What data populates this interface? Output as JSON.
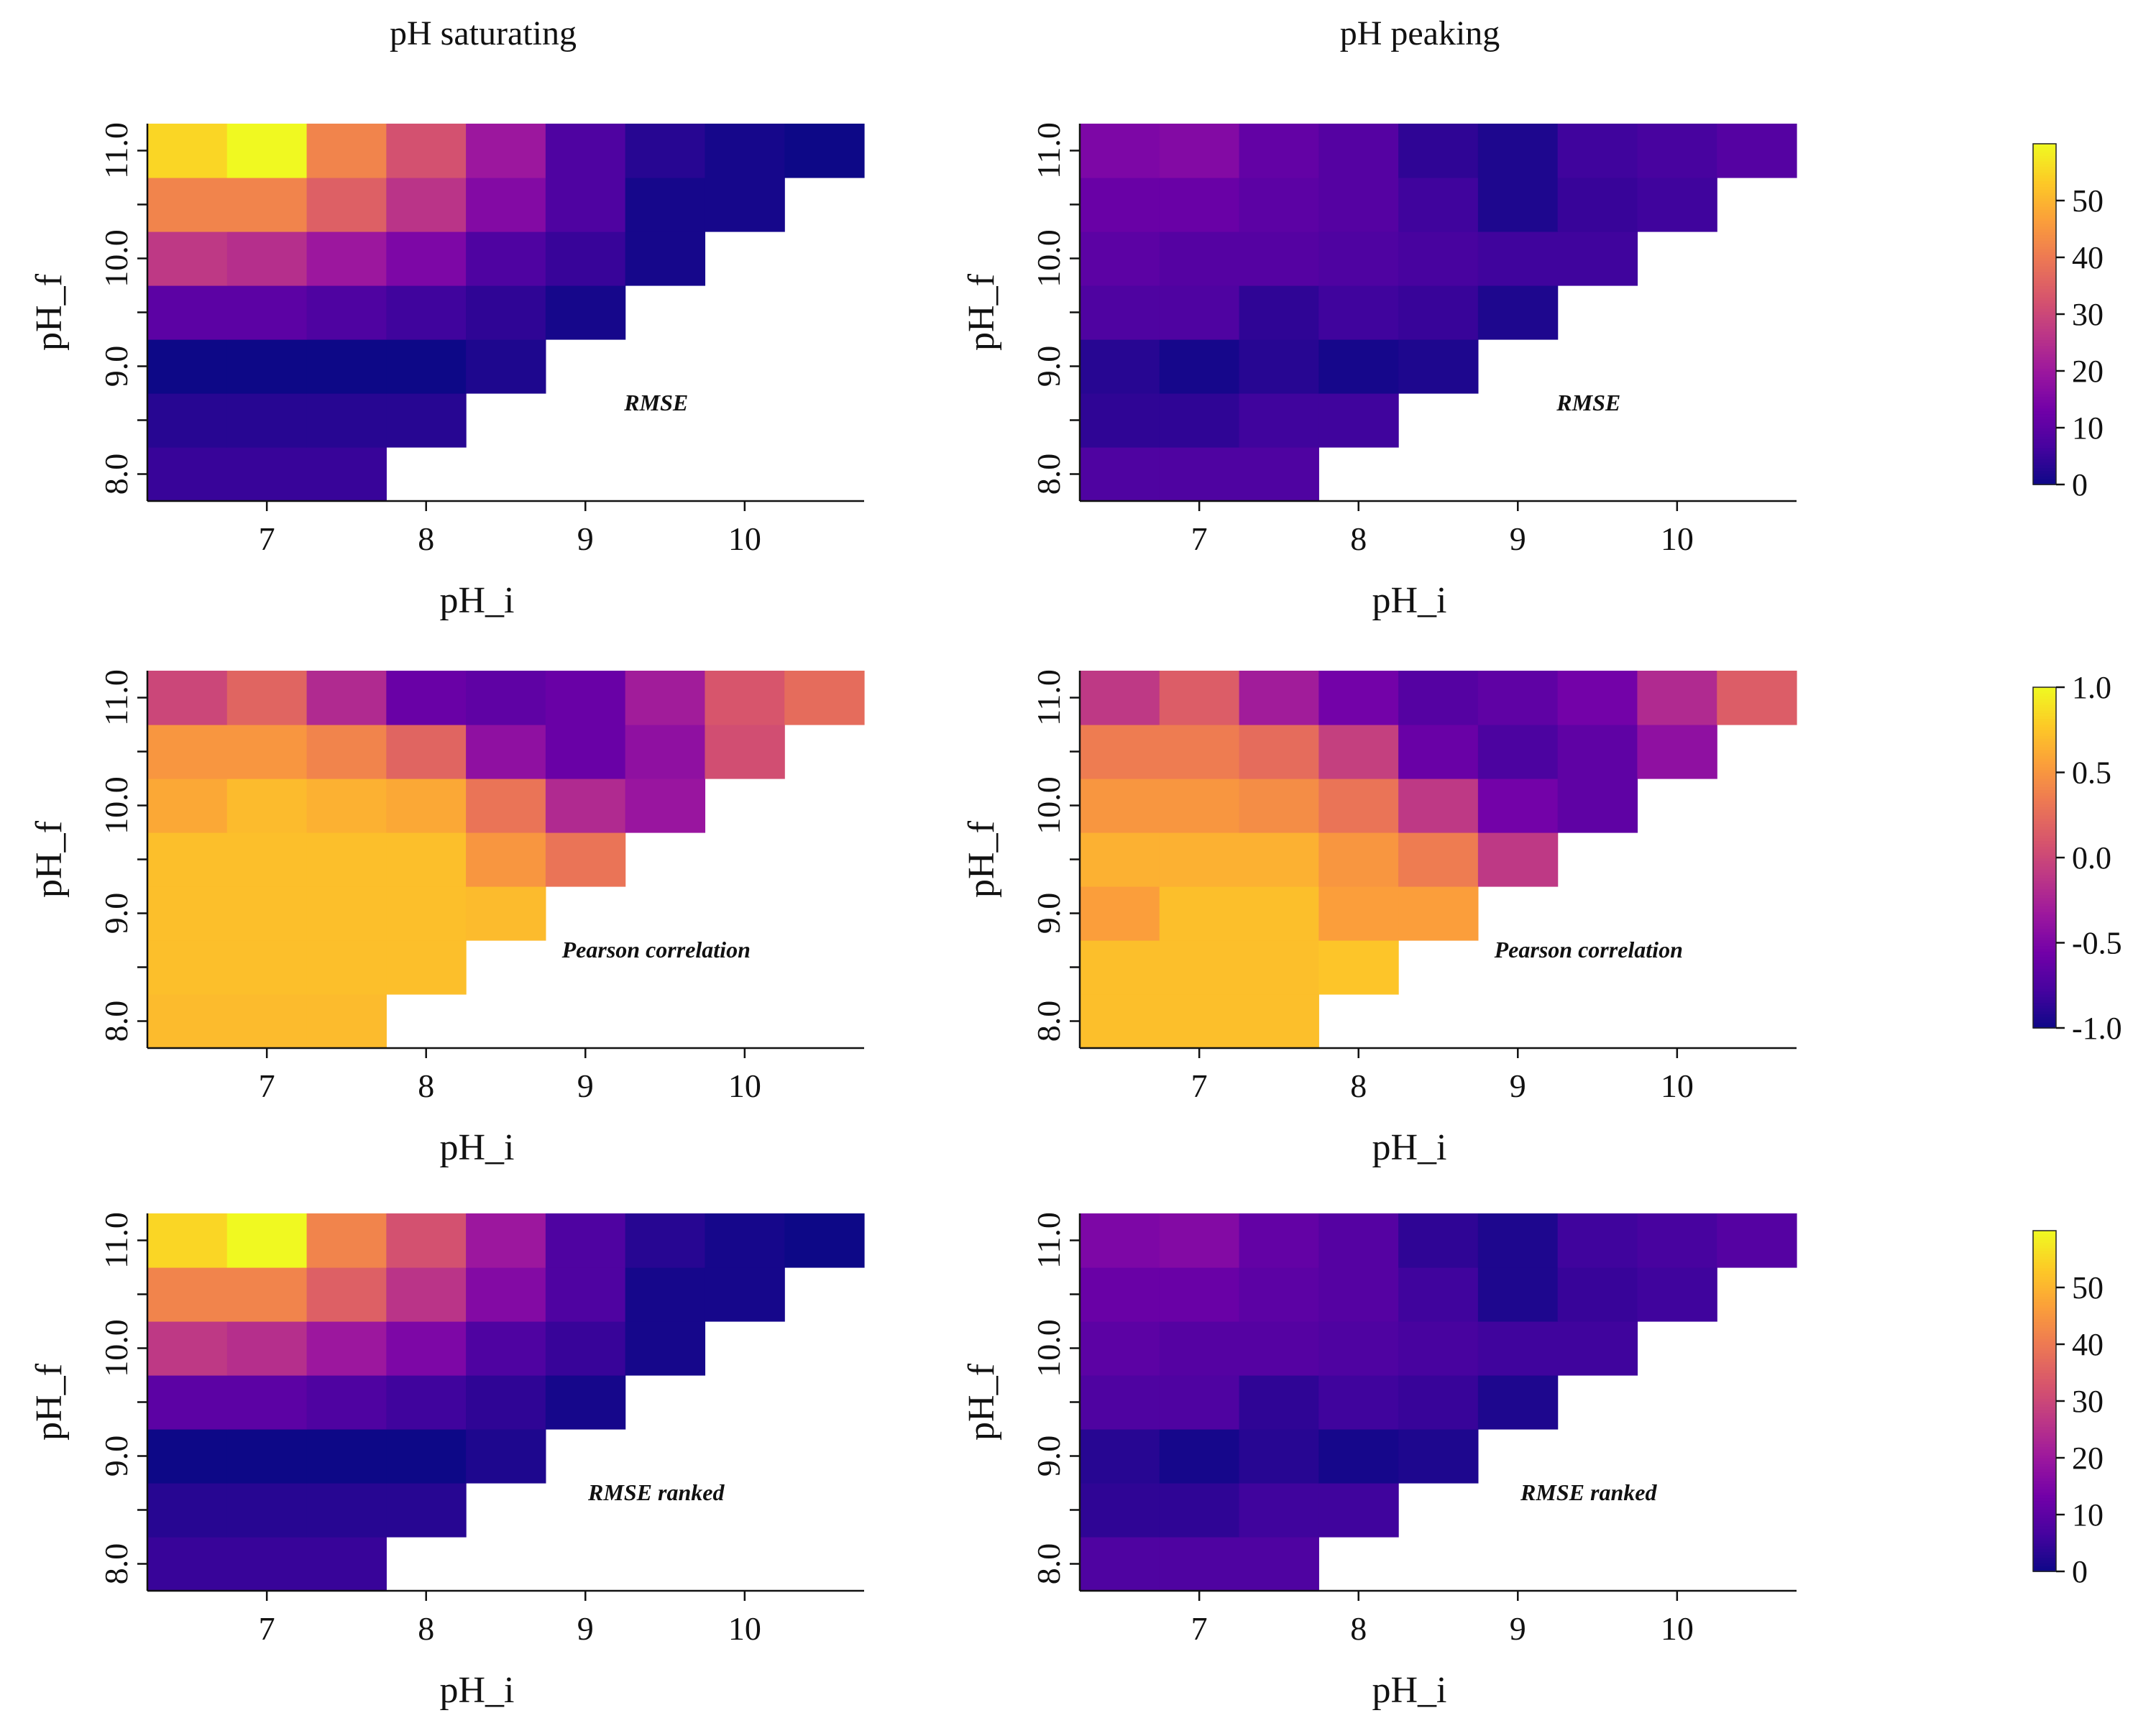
{
  "figure": {
    "col_titles": [
      "pH saturating",
      "pH peaking"
    ],
    "xlabel": "pH_i",
    "ylabel": "pH_f"
  },
  "chart_data": [
    {
      "type": "heatmap",
      "row": 0,
      "col": 0,
      "title": "pH saturating",
      "annotation": "RMSE",
      "xlabel": "pH_i",
      "ylabel": "pH_f",
      "x": [
        6.5,
        7.0,
        7.5,
        8.0,
        8.5,
        9.0,
        9.5,
        10.0,
        10.5
      ],
      "y": [
        8.0,
        8.5,
        9.0,
        9.5,
        10.0,
        10.5,
        11.0
      ],
      "xticks": [
        "7",
        "8",
        "9",
        "10"
      ],
      "yticks": [
        "8.0",
        "9.0",
        "10.0",
        "11.0"
      ],
      "xlim": [
        6.25,
        10.75
      ],
      "ylim": [
        7.75,
        11.25
      ],
      "values": [
        [
          5,
          5,
          5,
          null,
          null,
          null,
          null,
          null,
          null
        ],
        [
          3,
          3,
          3,
          3,
          null,
          null,
          null,
          null,
          null
        ],
        [
          0,
          0,
          0,
          0,
          2,
          null,
          null,
          null,
          null
        ],
        [
          10,
          10,
          8,
          6,
          4,
          1,
          null,
          null,
          null
        ],
        [
          27,
          25,
          20,
          15,
          8,
          5,
          1,
          null,
          null
        ],
        [
          42,
          42,
          35,
          26,
          16,
          8,
          1,
          1,
          null
        ],
        [
          55,
          60,
          42,
          32,
          20,
          8,
          3,
          1,
          0
        ]
      ]
    },
    {
      "type": "heatmap",
      "row": 0,
      "col": 1,
      "title": "pH peaking",
      "annotation": "RMSE",
      "xlabel": "pH_i",
      "ylabel": "pH_f",
      "x": [
        6.5,
        7.0,
        7.5,
        8.0,
        8.5,
        9.0,
        9.5,
        10.0,
        10.5
      ],
      "y": [
        8.0,
        8.5,
        9.0,
        9.5,
        10.0,
        10.5,
        11.0
      ],
      "xticks": [
        "7",
        "8",
        "9",
        "10"
      ],
      "yticks": [
        "8.0",
        "9.0",
        "10.0",
        "11.0"
      ],
      "xlim": [
        6.25,
        10.75
      ],
      "ylim": [
        7.75,
        11.25
      ],
      "values": [
        [
          8,
          8,
          8,
          null,
          null,
          null,
          null,
          null,
          null
        ],
        [
          4,
          4,
          6,
          6,
          null,
          null,
          null,
          null,
          null
        ],
        [
          3,
          1,
          3,
          1,
          2,
          null,
          null,
          null,
          null
        ],
        [
          8,
          8,
          4,
          6,
          5,
          2,
          null,
          null,
          null
        ],
        [
          10,
          9,
          9,
          8,
          7,
          6,
          6,
          null,
          null
        ],
        [
          12,
          12,
          10,
          9,
          6,
          2,
          5,
          6,
          null
        ],
        [
          15,
          16,
          11,
          9,
          4,
          2,
          6,
          7,
          9
        ]
      ]
    },
    {
      "type": "heatmap",
      "row": 1,
      "col": 0,
      "annotation": "Pearson correlation",
      "xlabel": "pH_i",
      "ylabel": "pH_f",
      "x": [
        6.5,
        7.0,
        7.5,
        8.0,
        8.5,
        9.0,
        9.5,
        10.0,
        10.5
      ],
      "y": [
        8.0,
        8.5,
        9.0,
        9.5,
        10.0,
        10.5,
        11.0
      ],
      "xticks": [
        "7",
        "8",
        "9",
        "10"
      ],
      "yticks": [
        "8.0",
        "9.0",
        "10.0",
        "11.0"
      ],
      "xlim": [
        6.25,
        10.75
      ],
      "ylim": [
        7.75,
        11.25
      ],
      "values": [
        [
          0.7,
          0.7,
          0.7,
          null,
          null,
          null,
          null,
          null,
          null
        ],
        [
          0.72,
          0.72,
          0.72,
          0.72,
          null,
          null,
          null,
          null,
          null
        ],
        [
          0.72,
          0.72,
          0.72,
          0.72,
          0.7,
          null,
          null,
          null,
          null
        ],
        [
          0.72,
          0.72,
          0.72,
          0.72,
          0.5,
          0.3,
          null,
          null,
          null
        ],
        [
          0.6,
          0.7,
          0.65,
          0.6,
          0.3,
          -0.2,
          -0.35,
          null,
          null
        ],
        [
          0.5,
          0.5,
          0.4,
          0.2,
          -0.4,
          -0.6,
          -0.4,
          0.05,
          null
        ],
        [
          0.0,
          0.2,
          -0.2,
          -0.6,
          -0.65,
          -0.6,
          -0.3,
          0.1,
          0.25
        ]
      ]
    },
    {
      "type": "heatmap",
      "row": 1,
      "col": 1,
      "annotation": "Pearson correlation",
      "xlabel": "pH_i",
      "ylabel": "pH_f",
      "x": [
        6.5,
        7.0,
        7.5,
        8.0,
        8.5,
        9.0,
        9.5,
        10.0,
        10.5
      ],
      "y": [
        8.0,
        8.5,
        9.0,
        9.5,
        10.0,
        10.5,
        11.0
      ],
      "xticks": [
        "7",
        "8",
        "9",
        "10"
      ],
      "yticks": [
        "8.0",
        "9.0",
        "10.0",
        "11.0"
      ],
      "xlim": [
        6.25,
        10.75
      ],
      "ylim": [
        7.75,
        11.25
      ],
      "values": [
        [
          0.72,
          0.72,
          0.72,
          null,
          null,
          null,
          null,
          null,
          null
        ],
        [
          0.72,
          0.72,
          0.72,
          0.75,
          null,
          null,
          null,
          null,
          null
        ],
        [
          0.55,
          0.72,
          0.72,
          0.55,
          0.55,
          null,
          null,
          null,
          null
        ],
        [
          0.65,
          0.65,
          0.65,
          0.5,
          0.35,
          -0.1,
          null,
          null,
          null
        ],
        [
          0.5,
          0.5,
          0.45,
          0.3,
          -0.1,
          -0.55,
          -0.65,
          null,
          null
        ],
        [
          0.35,
          0.35,
          0.25,
          -0.05,
          -0.6,
          -0.75,
          -0.65,
          -0.4,
          null
        ],
        [
          -0.1,
          0.15,
          -0.3,
          -0.55,
          -0.7,
          -0.65,
          -0.55,
          -0.2,
          0.15
        ]
      ]
    },
    {
      "type": "heatmap",
      "row": 2,
      "col": 0,
      "annotation": "RMSE ranked",
      "xlabel": "pH_i",
      "ylabel": "pH_f",
      "x": [
        6.5,
        7.0,
        7.5,
        8.0,
        8.5,
        9.0,
        9.5,
        10.0,
        10.5
      ],
      "y": [
        8.0,
        8.5,
        9.0,
        9.5,
        10.0,
        10.5,
        11.0
      ],
      "xticks": [
        "7",
        "8",
        "9",
        "10"
      ],
      "yticks": [
        "8.0",
        "9.0",
        "10.0",
        "11.0"
      ],
      "xlim": [
        6.25,
        10.75
      ],
      "ylim": [
        7.75,
        11.25
      ],
      "values": [
        [
          5,
          5,
          5,
          null,
          null,
          null,
          null,
          null,
          null
        ],
        [
          3,
          3,
          3,
          3,
          null,
          null,
          null,
          null,
          null
        ],
        [
          0,
          0,
          0,
          0,
          2,
          null,
          null,
          null,
          null
        ],
        [
          10,
          10,
          8,
          6,
          4,
          1,
          null,
          null,
          null
        ],
        [
          27,
          25,
          20,
          15,
          8,
          5,
          1,
          null,
          null
        ],
        [
          42,
          42,
          35,
          26,
          16,
          8,
          1,
          1,
          null
        ],
        [
          55,
          60,
          42,
          32,
          20,
          8,
          3,
          1,
          0
        ]
      ]
    },
    {
      "type": "heatmap",
      "row": 2,
      "col": 1,
      "annotation": "RMSE ranked",
      "xlabel": "pH_i",
      "ylabel": "pH_f",
      "x": [
        6.5,
        7.0,
        7.5,
        8.0,
        8.5,
        9.0,
        9.5,
        10.0,
        10.5
      ],
      "y": [
        8.0,
        8.5,
        9.0,
        9.5,
        10.0,
        10.5,
        11.0
      ],
      "xticks": [
        "7",
        "8",
        "9",
        "10"
      ],
      "yticks": [
        "8.0",
        "9.0",
        "10.0",
        "11.0"
      ],
      "xlim": [
        6.25,
        10.75
      ],
      "ylim": [
        7.75,
        11.25
      ],
      "values": [
        [
          8,
          8,
          8,
          null,
          null,
          null,
          null,
          null,
          null
        ],
        [
          4,
          4,
          6,
          6,
          null,
          null,
          null,
          null,
          null
        ],
        [
          3,
          1,
          3,
          1,
          2,
          null,
          null,
          null,
          null
        ],
        [
          8,
          8,
          4,
          6,
          5,
          2,
          null,
          null,
          null
        ],
        [
          10,
          9,
          9,
          8,
          7,
          6,
          6,
          null,
          null
        ],
        [
          12,
          12,
          10,
          9,
          6,
          2,
          5,
          6,
          null
        ],
        [
          15,
          16,
          11,
          9,
          4,
          2,
          6,
          7,
          9
        ]
      ]
    }
  ],
  "colorbars": [
    {
      "row": 0,
      "range": [
        0,
        60
      ],
      "ticks": [
        "0",
        "10",
        "20",
        "30",
        "40",
        "50"
      ],
      "tick_values": [
        0,
        10,
        20,
        30,
        40,
        50
      ]
    },
    {
      "row": 1,
      "range": [
        -1.0,
        1.0
      ],
      "ticks": [
        "-1.0",
        "-0.5",
        "0.0",
        "0.5",
        "1.0"
      ],
      "tick_values": [
        -1.0,
        -0.5,
        0.0,
        0.5,
        1.0
      ]
    },
    {
      "row": 2,
      "range": [
        0,
        60
      ],
      "ticks": [
        "0",
        "10",
        "20",
        "30",
        "40",
        "50"
      ],
      "tick_values": [
        0,
        10,
        20,
        30,
        40,
        50
      ]
    }
  ],
  "colormap": {
    "name": "plasma",
    "stops": [
      "#0d0887",
      "#46039f",
      "#7201a8",
      "#9c179e",
      "#bd3786",
      "#d8576b",
      "#ed7953",
      "#fb9f3a",
      "#fdca26",
      "#f0f921"
    ]
  }
}
